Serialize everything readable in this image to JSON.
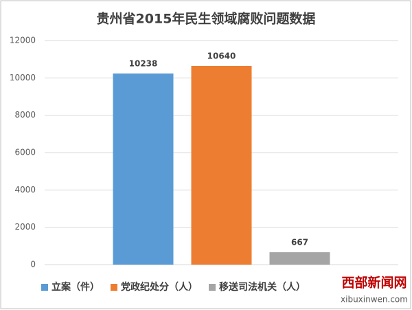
{
  "chart_data": {
    "type": "bar",
    "title": "贵州省2015年民生领域腐败问题数据",
    "categories": [
      null
    ],
    "series": [
      {
        "name": "立案（件）",
        "color": "#5b9bd5",
        "values": [
          10238
        ]
      },
      {
        "name": "党政纪处分（人）",
        "color": "#ed7d31",
        "values": [
          10640
        ]
      },
      {
        "name": "移送司法机关（人）",
        "color": "#a5a5a5",
        "values": [
          667
        ]
      }
    ],
    "ylim": [
      0,
      12000
    ],
    "yticks": [
      0,
      2000,
      4000,
      6000,
      8000,
      10000,
      12000
    ],
    "grid": true,
    "legend": "bottom"
  },
  "watermark": {
    "name": "西部新闻网",
    "url": "xibuxinwen.com"
  }
}
